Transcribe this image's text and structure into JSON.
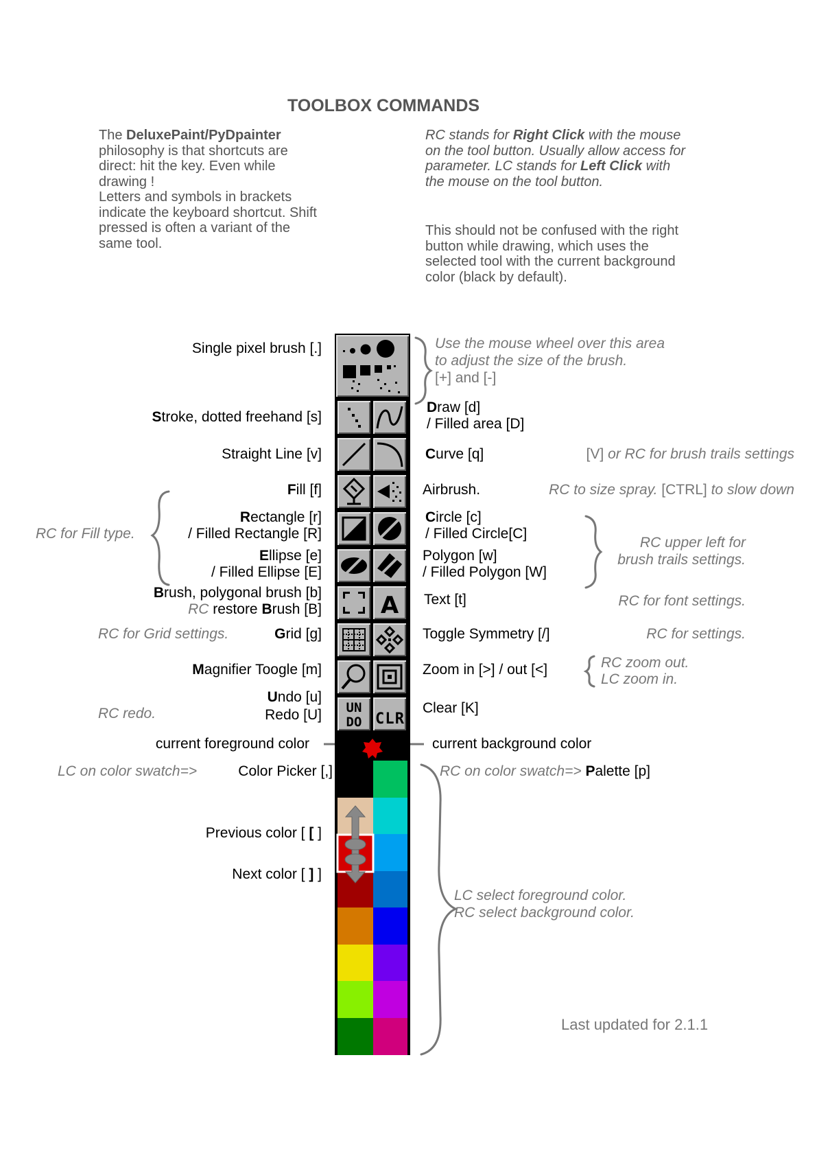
{
  "title": "TOOLBOX COMMANDS",
  "intro_left": {
    "prefix": "The ",
    "bold": "DeluxePaint/PyDpainter",
    "rest": " philosophy is that shortcuts are direct: hit the key. Even while drawing !",
    "line2": "Letters and symbols in brackets indicate the keyboard shortcut. Shift pressed is often a variant of the same tool."
  },
  "intro_right": {
    "a": "RC stands for ",
    "b": "Right Click",
    "c": " with the mouse on the tool button. Usually allow access for parameter. LC stands for ",
    "d": "Left Click",
    "e": " with the mouse on the tool button.",
    "para2": "This should not be confused with the right button while drawing, which uses the selected tool with the current background color (black by default)."
  },
  "left_labels": {
    "single_pixel": "Single pixel brush [.]",
    "stroke_b": "S",
    "stroke_rest": "troke, dotted freehand [s]",
    "straight": "Straight Line [v]",
    "fill_b": "F",
    "fill_rest": "ill [f]",
    "rect_b": "R",
    "rect_rest": "ectangle [r]",
    "filled_rect": "/ Filled Rectangle [R]",
    "ellipse_b": "E",
    "ellipse_rest": "llipse [e]",
    "filled_ellipse": "/ Filled Ellipse [E]",
    "brush_b": "B",
    "brush_rest": "rush, polygonal brush [b]",
    "restore_rc": "RC",
    "restore_mid": " restore ",
    "restore_b": "B",
    "restore_rest": "rush [B]",
    "grid_b": "G",
    "grid_rest": "rid [g]",
    "magnifier_b": "M",
    "magnifier_rest": "agnifier Toogle [m]",
    "undo_b": "U",
    "undo_rest": "ndo [u]",
    "redo": "Redo [U]",
    "fg_color": "current foreground color",
    "color_picker": "Color Picker [,]",
    "prev_color_a": "Previous color [ ",
    "prev_color_b": "[",
    "prev_color_c": " ]",
    "next_color_a": "Next color [ ",
    "next_color_b": "]",
    "next_color_c": " ]"
  },
  "left_notes": {
    "fill_type": "RC for Fill type.",
    "grid_settings": "RC for Grid settings.",
    "redo": "RC redo.",
    "lc_swatch": "LC on color swatch=>"
  },
  "right_labels": {
    "draw_b": "D",
    "draw_rest": "raw [d]",
    "filled_area": "/ Filled area [D]",
    "curve_b": "C",
    "curve_rest": "urve [q]",
    "airbrush": "Airbrush.",
    "circle_b": "C",
    "circle_rest": "ircle [c]",
    "filled_circle": "/ Filled Circle[C]",
    "polygon": "Polygon [w]",
    "filled_polygon": "/ Filled Polygon [W]",
    "text": "Text [t]",
    "symmetry": "Toggle Symmetry [/]",
    "zoom": "Zoom in [>] / out [<]",
    "clear": "Clear [K]",
    "bg_color": "current background color",
    "palette_b": "P",
    "palette_rest": "alette [p]"
  },
  "right_notes": {
    "wheel": [
      "Use the mouse wheel over this area",
      "to adjust the size of the brush.",
      "[+] and [-]"
    ],
    "curve_a": "[V]",
    "curve_b": " or RC for brush trails settings",
    "air_a": "RC to size spray.",
    "air_b": " [CTRL] ",
    "air_c": "to slow down",
    "upper_left": [
      "RC upper left for",
      "brush trails settings."
    ],
    "font": "RC for font settings.",
    "symmetry": "RC for settings.",
    "zoom": [
      "RC zoom out.",
      "LC zoom in."
    ],
    "rc_swatch": "RC on color swatch=> ",
    "select": [
      "LC  select  foreground  color.",
      "RC select background color."
    ]
  },
  "tool_icons": [
    "dotted-freehand-icon",
    "draw-curve-icon",
    "straight-line-icon",
    "curve-icon",
    "fill-bucket-icon",
    "airbrush-icon",
    "rectangle-icon",
    "circle-icon",
    "ellipse-icon",
    "polygon-icon",
    "brush-select-icon",
    "text-icon",
    "grid-icon",
    "symmetry-icon",
    "magnifier-icon",
    "zoom-icon",
    "undo-icon",
    "clear-icon"
  ],
  "tool_cells": [
    "",
    "",
    "",
    "",
    "",
    "",
    "",
    "",
    "",
    "",
    "",
    "A",
    "",
    "",
    "",
    "",
    "UN DO",
    "CLR"
  ],
  "palette": {
    "left": [
      "#000000",
      "#e2c4a4",
      "#d40000",
      "#a00000",
      "#d47800",
      "#f0e000",
      "#88f000",
      "#007800"
    ],
    "right": [
      "#00c060",
      "#00d0d0",
      "#00a0f0",
      "#0070c8",
      "#0000f0",
      "#7000f0",
      "#c000e0",
      "#d0007c"
    ],
    "fg": "#e00000",
    "bg": "#000000"
  },
  "footer": "Last updated for 2.1.1"
}
